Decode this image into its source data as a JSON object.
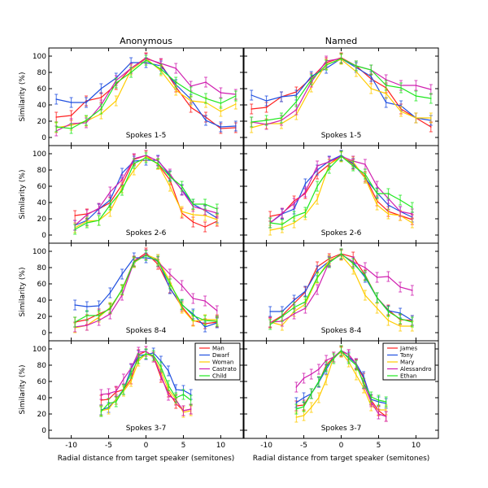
{
  "chart_data": {
    "type": "line",
    "ylabel": "Similarity (%)",
    "xlabel": "Radial distance from target speaker (semitones)",
    "xlim": [
      -13,
      13
    ],
    "ylim": [
      -10,
      110
    ],
    "xticks": [
      -10,
      -5,
      0,
      5,
      10
    ],
    "yticks": [
      0,
      20,
      40,
      60,
      80,
      100
    ],
    "grid": false,
    "error_bars": true,
    "approx_error": 6,
    "columns": [
      {
        "title": "Anonymous",
        "legend_placement": "top-right (bottom row)",
        "series_names": [
          "Man",
          "Dwarf",
          "Woman",
          "Castrato",
          "Child"
        ]
      },
      {
        "title": "Named",
        "legend_placement": "top-right (bottom row)",
        "series_names": [
          "James",
          "Tony",
          "Mary",
          "Alessandro",
          "Ethan"
        ]
      }
    ],
    "colors": [
      "#ff2020",
      "#2050e0",
      "#ffcc00",
      "#d020b0",
      "#20e820"
    ],
    "panels": [
      {
        "label": "Spokes 1-5",
        "column": 0,
        "x": [
          -12,
          -10,
          -8,
          -6,
          -4,
          -2,
          0,
          2,
          4,
          6,
          8,
          10,
          12
        ],
        "values": [
          [
            25,
            27,
            45,
            49,
            65,
            85,
            98,
            90,
            62,
            37,
            25,
            11,
            12
          ],
          [
            47,
            43,
            43,
            60,
            73,
            92,
            92,
            88,
            65,
            47,
            21,
            13,
            14
          ],
          [
            12,
            15,
            20,
            29,
            45,
            83,
            97,
            82,
            58,
            45,
            43,
            32,
            41
          ],
          [
            8,
            17,
            18,
            40,
            70,
            85,
            97,
            91,
            85,
            63,
            68,
            55,
            53
          ],
          [
            13,
            11,
            21,
            35,
            67,
            80,
            95,
            84,
            68,
            56,
            48,
            42,
            51
          ]
        ]
      },
      {
        "label": "Spokes 1-5",
        "column": 1,
        "x": [
          -12,
          -10,
          -8,
          -6,
          -4,
          -2,
          0,
          2,
          4,
          6,
          8,
          10,
          12
        ],
        "values": [
          [
            35,
            37,
            50,
            56,
            73,
            92,
            98,
            88,
            72,
            61,
            35,
            24,
            13
          ],
          [
            52,
            45,
            50,
            52,
            75,
            85,
            97,
            86,
            75,
            43,
            39,
            24,
            21
          ],
          [
            12,
            17,
            17,
            28,
            62,
            90,
            96,
            81,
            60,
            54,
            32,
            24,
            24
          ],
          [
            19,
            16,
            21,
            34,
            68,
            94,
            97,
            88,
            83,
            71,
            64,
            64,
            59
          ],
          [
            19,
            21,
            24,
            44,
            71,
            89,
            97,
            88,
            83,
            64,
            61,
            51,
            48
          ]
        ]
      },
      {
        "label": "Spokes 2-6",
        "column": 0,
        "x": [
          -9.5,
          -7.9,
          -6.3,
          -4.8,
          -3.2,
          -1.6,
          0,
          1.6,
          3.2,
          4.8,
          6.3,
          7.9,
          9.5
        ],
        "values": [
          [
            24,
            26,
            32,
            40,
            62,
            93,
            98,
            87,
            68,
            27,
            16,
            10,
            17
          ],
          [
            12,
            18,
            32,
            43,
            76,
            91,
            92,
            92,
            73,
            56,
            38,
            30,
            21
          ],
          [
            9,
            17,
            18,
            29,
            58,
            80,
            97,
            87,
            60,
            29,
            25,
            24,
            19
          ],
          [
            12,
            25,
            33,
            53,
            68,
            94,
            98,
            91,
            75,
            55,
            35,
            31,
            27
          ],
          [
            7,
            15,
            18,
            37,
            55,
            88,
            95,
            88,
            72,
            60,
            38,
            38,
            32
          ]
        ]
      },
      {
        "label": "Spokes 2-6",
        "column": 1,
        "x": [
          -9.5,
          -7.9,
          -6.3,
          -4.8,
          -3.2,
          -1.6,
          0,
          1.6,
          3.2,
          4.8,
          6.3,
          7.9,
          9.5
        ],
        "values": [
          [
            23,
            26,
            42,
            51,
            75,
            87,
            98,
            87,
            72,
            42,
            29,
            24,
            19
          ],
          [
            15,
            26,
            32,
            63,
            80,
            91,
            98,
            88,
            70,
            52,
            37,
            29,
            22
          ],
          [
            6,
            9,
            15,
            25,
            44,
            87,
            96,
            90,
            70,
            37,
            26,
            24,
            15
          ],
          [
            15,
            27,
            39,
            53,
            85,
            90,
            97,
            91,
            87,
            60,
            45,
            29,
            26
          ],
          [
            15,
            13,
            23,
            28,
            60,
            82,
            97,
            85,
            75,
            51,
            51,
            43,
            34
          ]
        ]
      },
      {
        "label": "Spokes 8-4",
        "column": 0,
        "x": [
          -9.5,
          -7.9,
          -6.3,
          -4.8,
          -3.2,
          -1.6,
          0,
          1.6,
          3.2,
          4.8,
          6.3,
          7.9,
          9.5
        ],
        "values": [
          [
            13,
            16,
            23,
            29,
            53,
            88,
            98,
            84,
            55,
            32,
            15,
            11,
            13
          ],
          [
            34,
            32,
            33,
            49,
            72,
            92,
            92,
            90,
            54,
            34,
            23,
            7,
            12
          ],
          [
            6,
            9,
            19,
            31,
            52,
            86,
            96,
            90,
            63,
            30,
            14,
            16,
            16
          ],
          [
            7,
            9,
            15,
            23,
            46,
            87,
            96,
            87,
            72,
            58,
            42,
            39,
            27
          ],
          [
            13,
            21,
            21,
            30,
            53,
            87,
            95,
            88,
            60,
            35,
            21,
            15,
            14
          ]
        ]
      },
      {
        "label": "Spokes 8-4",
        "column": 1,
        "x": [
          -9.5,
          -7.9,
          -6.3,
          -4.8,
          -3.2,
          -1.6,
          0,
          1.6,
          3.2,
          4.8,
          6.3,
          7.9,
          9.5
        ],
        "values": [
          [
            12,
            21,
            36,
            50,
            81,
            91,
            97,
            93,
            71,
            43,
            28,
            16,
            15
          ],
          [
            26,
            26,
            40,
            51,
            76,
            88,
            96,
            87,
            68,
            43,
            27,
            24,
            15
          ],
          [
            13,
            9,
            26,
            35,
            67,
            89,
            95,
            78,
            46,
            30,
            15,
            8,
            8
          ],
          [
            13,
            14,
            23,
            30,
            53,
            87,
            96,
            87,
            80,
            68,
            69,
            56,
            52
          ],
          [
            10,
            20,
            31,
            38,
            68,
            86,
            97,
            85,
            70,
            43,
            26,
            17,
            13
          ]
        ]
      },
      {
        "label": "Spokes 3-7",
        "column": 0,
        "x": [
          -6,
          -5,
          -4,
          -3,
          -2,
          -1,
          0,
          1,
          2,
          3,
          4,
          5,
          6
        ],
        "values": [
          [
            37,
            38,
            47,
            50,
            63,
            93,
            97,
            90,
            65,
            47,
            33,
            24,
            26
          ],
          [
            25,
            28,
            38,
            50,
            75,
            92,
            93,
            95,
            85,
            73,
            50,
            49,
            44
          ],
          [
            24,
            26,
            38,
            48,
            60,
            85,
            94,
            90,
            73,
            50,
            38,
            22,
            24
          ],
          [
            44,
            45,
            48,
            63,
            76,
            96,
            97,
            90,
            68,
            43,
            37,
            24,
            26
          ],
          [
            23,
            33,
            35,
            50,
            70,
            88,
            94,
            92,
            78,
            55,
            40,
            44,
            37
          ]
        ]
      },
      {
        "label": "Spokes 3-7",
        "column": 1,
        "x": [
          -6,
          -5,
          -4,
          -3,
          -2,
          -1,
          0,
          1,
          2,
          3,
          4,
          5,
          6
        ],
        "values": [
          [
            30,
            31,
            45,
            59,
            80,
            90,
            97,
            93,
            81,
            64,
            37,
            24,
            17
          ],
          [
            34,
            40,
            45,
            59,
            75,
            90,
            96,
            90,
            82,
            66,
            38,
            35,
            33
          ],
          [
            16,
            18,
            28,
            40,
            62,
            90,
            96,
            84,
            68,
            52,
            30,
            25,
            25
          ],
          [
            53,
            64,
            69,
            75,
            86,
            90,
            98,
            93,
            82,
            57,
            35,
            20,
            17
          ],
          [
            26,
            29,
            45,
            60,
            78,
            88,
            98,
            88,
            80,
            58,
            41,
            37,
            35
          ]
        ]
      }
    ]
  }
}
